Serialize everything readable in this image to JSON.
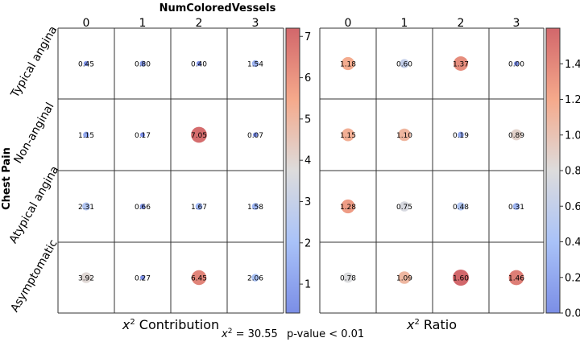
{
  "chart_data": {
    "type": "heatmap",
    "title": "NumColoredVessels",
    "ylabel": "Chest Pain",
    "columns": [
      "0",
      "1",
      "2",
      "3"
    ],
    "rows": [
      "Typical angina",
      "Non-anginal",
      "Atypical angina",
      "Asymptomatic"
    ],
    "panels": [
      {
        "name": "x² Contribution",
        "label_main": "x",
        "label_sup": "2",
        "label_rest": " Contribution",
        "vmin": 0.3,
        "vmax": 7.2,
        "ticks": [
          "1",
          "2",
          "3",
          "4",
          "5",
          "6",
          "7"
        ],
        "values": [
          [
            0.45,
            0.8,
            0.4,
            1.54
          ],
          [
            1.15,
            0.17,
            7.05,
            0.07
          ],
          [
            2.31,
            0.66,
            1.67,
            1.58
          ],
          [
            3.92,
            0.27,
            6.45,
            2.06
          ]
        ],
        "labels": [
          [
            "0.45",
            "0.80",
            "0.40",
            "1.54"
          ],
          [
            "1.15",
            "0.17",
            "7.05",
            "0.07"
          ],
          [
            "2.31",
            "0.66",
            "1.67",
            "1.58"
          ],
          [
            "3.92",
            "0.27",
            "6.45",
            "2.06"
          ]
        ]
      },
      {
        "name": "x² Ratio",
        "label_main": "x",
        "label_sup": "2",
        "label_rest": " Ratio",
        "vmin": 0.0,
        "vmax": 1.6,
        "ticks": [
          "0.0",
          "0.2",
          "0.4",
          "0.6",
          "0.8",
          "1.0",
          "1.2",
          "1.4"
        ],
        "values": [
          [
            1.18,
            0.6,
            1.37,
            0.0
          ],
          [
            1.15,
            1.1,
            0.19,
            0.89
          ],
          [
            1.28,
            0.75,
            0.48,
            0.31
          ],
          [
            0.78,
            1.09,
            1.6,
            1.46
          ]
        ],
        "labels": [
          [
            "1.18",
            "0.60",
            "1.37",
            "0.00"
          ],
          [
            "1.15",
            "1.10",
            "0.19",
            "0.89"
          ],
          [
            "1.28",
            "0.75",
            "0.48",
            "0.31"
          ],
          [
            "0.78",
            "1.09",
            "1.60",
            "1.46"
          ]
        ]
      }
    ],
    "statistic": {
      "chi_label_main": "x",
      "chi_label_sup": "2",
      "chi_label_rest": " = 30.55",
      "pvalue": "p-value < 0.01"
    },
    "colormap": "coolwarm"
  }
}
